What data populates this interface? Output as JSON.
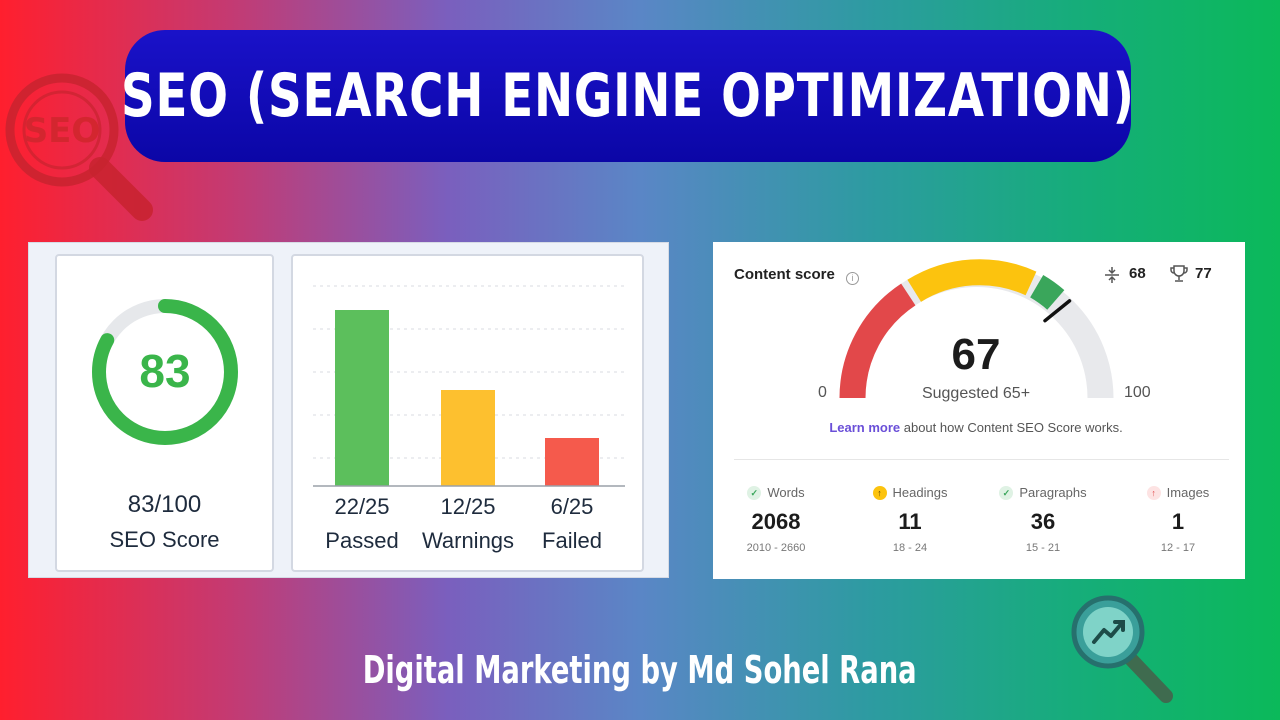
{
  "banner": {
    "title": "SEO (SEARCH ENGINE OPTIMIZATION)"
  },
  "seo_badge": {
    "icon": "seo-magnifier-icon",
    "text": "SEO",
    "color": "#c8232f"
  },
  "score_panel": {
    "value": "83",
    "fraction": "83/100",
    "label": "SEO Score",
    "progress": 0.83,
    "color": "#3ab54a"
  },
  "checks_panel": {
    "chart_data": {
      "type": "bar",
      "categories": [
        "Passed",
        "Warnings",
        "Failed"
      ],
      "values": [
        22,
        12,
        6
      ],
      "fractions": [
        "22/25",
        "12/25",
        "6/25"
      ],
      "ylim": [
        0,
        25
      ],
      "grid": true,
      "colors": [
        "#5cbf5c",
        "#fdc02f",
        "#f55a4c"
      ]
    }
  },
  "content_score": {
    "title": "Content score",
    "info_icon": "info-icon",
    "compress_icon": "compress-icon",
    "compress_value": "68",
    "trophy_icon": "trophy-icon",
    "trophy_value": "77",
    "score": "67",
    "suggested": "Suggested 65+",
    "min": "0",
    "max": "100",
    "learn_link": "Learn more",
    "learn_text": " about how Content SEO Score works.",
    "metrics": [
      {
        "name": "Words",
        "value": "2068",
        "range": "2010 - 2660",
        "status": "ok",
        "icon": "check-icon"
      },
      {
        "name": "Headings",
        "value": "11",
        "range": "18 - 24",
        "status": "up",
        "icon": "arrow-up-icon"
      },
      {
        "name": "Paragraphs",
        "value": "36",
        "range": "15 - 21",
        "status": "ok",
        "icon": "check-icon"
      },
      {
        "name": "Images",
        "value": "1",
        "range": "12 - 17",
        "status": "low",
        "icon": "arrow-up-icon"
      }
    ]
  },
  "trend_badge": {
    "icon": "trend-magnifier-icon"
  },
  "footer": {
    "text": "Digital Marketing by Md Sohel Rana"
  }
}
